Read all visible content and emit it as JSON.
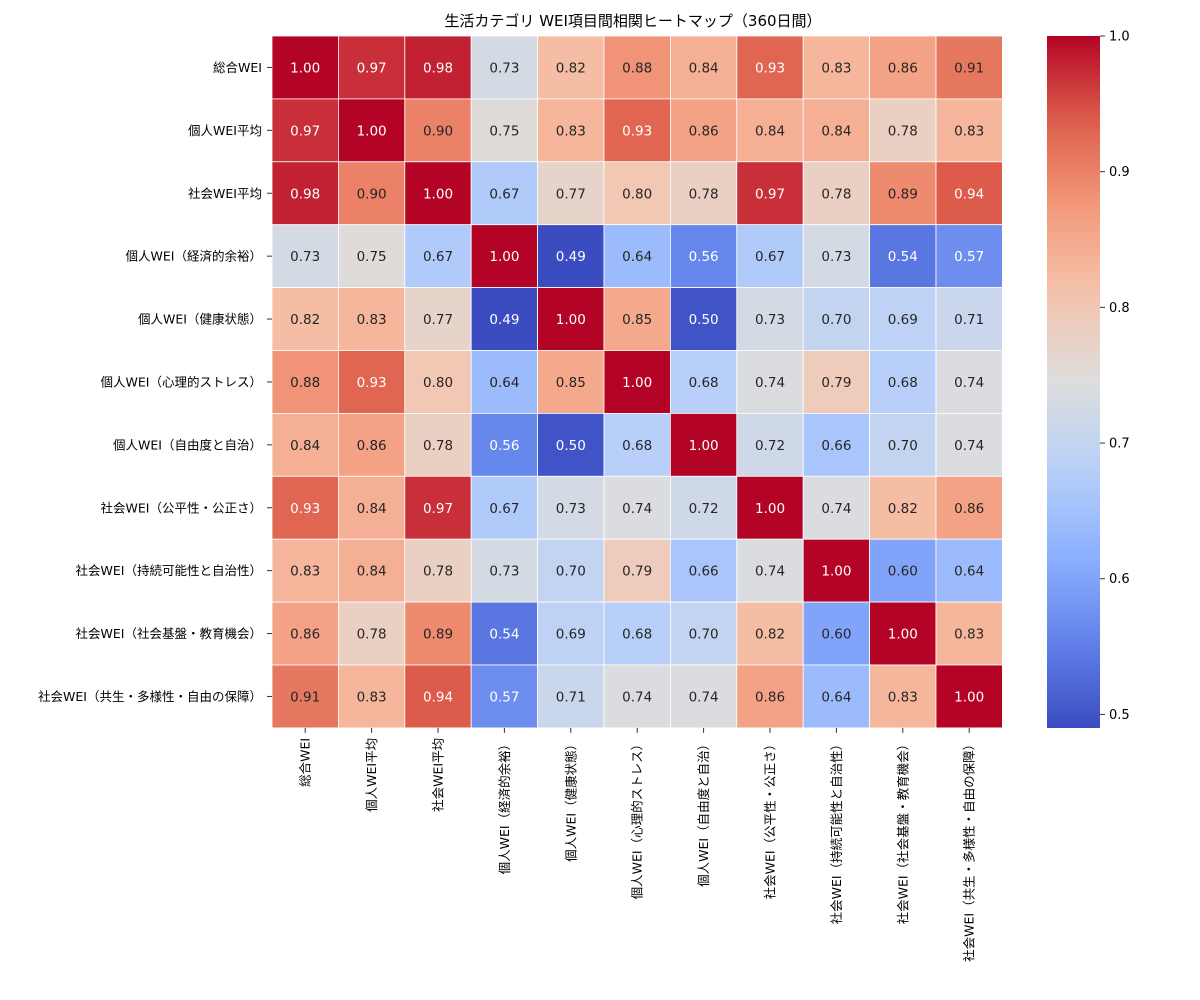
{
  "chart_data": {
    "type": "heatmap",
    "title": "生活カテゴリ WEI項目間相関ヒートマップ（360日間）",
    "labels": [
      "総合WEI",
      "個人WEI平均",
      "社会WEI平均",
      "個人WEI（経済的余裕）",
      "個人WEI（健康状態）",
      "個人WEI（心理的ストレス）",
      "個人WEI（自由度と自治）",
      "社会WEI（公平性・公正さ）",
      "社会WEI（持続可能性と自治性）",
      "社会WEI（社会基盤・教育機会）",
      "社会WEI（共生・多様性・自由の保障）"
    ],
    "matrix": [
      [
        1.0,
        0.97,
        0.98,
        0.73,
        0.82,
        0.88,
        0.84,
        0.93,
        0.83,
        0.86,
        0.91
      ],
      [
        0.97,
        1.0,
        0.9,
        0.75,
        0.83,
        0.93,
        0.86,
        0.84,
        0.84,
        0.78,
        0.83
      ],
      [
        0.98,
        0.9,
        1.0,
        0.67,
        0.77,
        0.8,
        0.78,
        0.97,
        0.78,
        0.89,
        0.94
      ],
      [
        0.73,
        0.75,
        0.67,
        1.0,
        0.49,
        0.64,
        0.56,
        0.67,
        0.73,
        0.54,
        0.57
      ],
      [
        0.82,
        0.83,
        0.77,
        0.49,
        1.0,
        0.85,
        0.5,
        0.73,
        0.7,
        0.69,
        0.71
      ],
      [
        0.88,
        0.93,
        0.8,
        0.64,
        0.85,
        1.0,
        0.68,
        0.74,
        0.79,
        0.68,
        0.74
      ],
      [
        0.84,
        0.86,
        0.78,
        0.56,
        0.5,
        0.68,
        1.0,
        0.72,
        0.66,
        0.7,
        0.74
      ],
      [
        0.93,
        0.84,
        0.97,
        0.67,
        0.73,
        0.74,
        0.72,
        1.0,
        0.74,
        0.82,
        0.86
      ],
      [
        0.83,
        0.84,
        0.78,
        0.73,
        0.7,
        0.79,
        0.66,
        0.74,
        1.0,
        0.6,
        0.64
      ],
      [
        0.86,
        0.78,
        0.89,
        0.54,
        0.69,
        0.68,
        0.7,
        0.82,
        0.6,
        1.0,
        0.83
      ],
      [
        0.91,
        0.83,
        0.94,
        0.57,
        0.71,
        0.74,
        0.74,
        0.86,
        0.64,
        0.83,
        1.0
      ]
    ],
    "value_format": "0.00",
    "colormap": "coolwarm",
    "vmin": 0.49,
    "vmax": 1.0,
    "colorbar_ticks": [
      "0.5",
      "0.6",
      "0.7",
      "0.8",
      "0.9",
      "1.0"
    ],
    "colorbar_tick_values": [
      0.5,
      0.6,
      0.7,
      0.8,
      0.9,
      1.0
    ],
    "grid": false,
    "legend": "colorbar-right"
  }
}
